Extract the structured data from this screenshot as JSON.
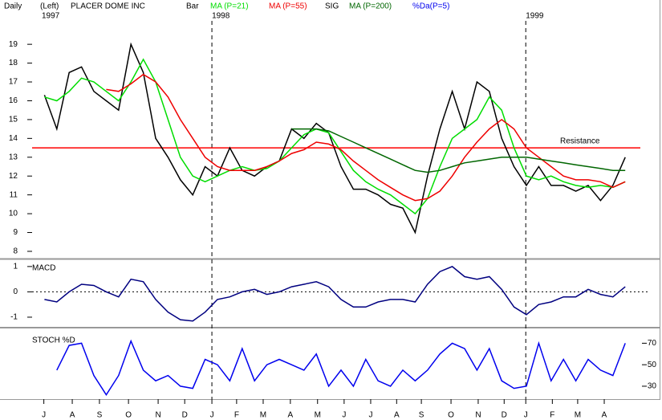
{
  "header": {
    "period": "Daily",
    "axis_side": "(Left)",
    "symbol": "PLACER DOME INC",
    "sig": "SIG"
  },
  "chart_data": [
    {
      "type": "line",
      "xlim": [
        0,
        100
      ],
      "ylim": [
        7.7,
        20.5
      ],
      "ytick_side": "left",
      "yticks": [
        8,
        9,
        10,
        11,
        12,
        13,
        14,
        15,
        16,
        17,
        18,
        19
      ],
      "year_markers": [
        {
          "value": 1.5,
          "label": "1997"
        },
        {
          "value": 29.1,
          "label": "1998"
        },
        {
          "value": 79.9,
          "label": "1999"
        }
      ],
      "resistance": {
        "label": "Resistance",
        "value": 13.5,
        "color": "#ff0000"
      },
      "x": [
        2,
        4,
        6,
        8,
        10,
        12,
        14,
        16,
        18,
        20,
        22,
        24,
        26,
        28,
        30,
        32,
        34,
        36,
        38,
        40,
        42,
        44,
        46,
        48,
        50,
        52,
        54,
        56,
        58,
        60,
        62,
        64,
        66,
        68,
        70,
        72,
        74,
        76,
        78,
        80,
        82,
        84,
        86,
        88,
        90,
        92,
        94,
        96
      ],
      "series": [
        {
          "name": "Bar",
          "color": "#000000",
          "values": [
            16.3,
            14.5,
            17.5,
            17.8,
            16.5,
            16,
            15.5,
            19,
            17.5,
            14,
            13,
            11.8,
            11,
            12.5,
            12,
            13.5,
            12.3,
            12,
            12.5,
            12.8,
            14.5,
            14,
            14.8,
            14.3,
            12.5,
            11.3,
            11.3,
            11,
            10.5,
            10.3,
            9,
            12,
            14.5,
            16.5,
            14.5,
            17,
            16.5,
            14,
            12.5,
            11.5,
            12.5,
            11.5,
            11.5,
            11.2,
            11.5,
            10.7,
            11.5,
            13
          ]
        },
        {
          "name": "MA (P=21)",
          "color": "#00dd00",
          "values": [
            16.2,
            16,
            16.5,
            17.2,
            17,
            16.5,
            16,
            17,
            18.2,
            17,
            15,
            13,
            12,
            11.7,
            12,
            12.3,
            12.5,
            12.3,
            12.4,
            12.8,
            13.5,
            14.2,
            14.5,
            14.3,
            13.3,
            12.3,
            11.7,
            11.3,
            11,
            10.5,
            10,
            10.8,
            12.5,
            14,
            14.5,
            15,
            16.2,
            15.5,
            13.5,
            12,
            11.8,
            12,
            11.7,
            11.5,
            11.4,
            11.5,
            11.4,
            11.7
          ]
        },
        {
          "name": "MA (P=55)",
          "color": "#ee0000",
          "values": [
            null,
            null,
            null,
            null,
            null,
            16.6,
            16.5,
            16.9,
            17.4,
            17,
            16.2,
            15,
            14,
            13,
            12.5,
            12.3,
            12.3,
            12.3,
            12.5,
            12.8,
            13.2,
            13.4,
            13.8,
            13.7,
            13.4,
            12.8,
            12.3,
            11.8,
            11.4,
            11,
            10.7,
            10.8,
            11.2,
            12,
            13,
            13.8,
            14.5,
            15,
            14.5,
            13.5,
            13,
            12.5,
            12,
            11.8,
            11.8,
            11.7,
            11.4,
            11.7
          ]
        },
        {
          "name": "MA (P=200)",
          "color": "#006600",
          "values": [
            null,
            null,
            null,
            null,
            null,
            null,
            null,
            null,
            null,
            null,
            null,
            null,
            null,
            null,
            null,
            null,
            null,
            null,
            null,
            null,
            14.5,
            14.5,
            14.5,
            14.4,
            14.1,
            13.8,
            13.5,
            13.2,
            12.9,
            12.6,
            12.3,
            12.2,
            12.3,
            12.5,
            12.7,
            12.8,
            12.9,
            13,
            13,
            13,
            12.9,
            12.8,
            12.7,
            12.6,
            12.5,
            12.4,
            12.3,
            12.3
          ]
        }
      ]
    },
    {
      "type": "line",
      "title": "MACD",
      "xlim": [
        0,
        100
      ],
      "ylim": [
        -1.35,
        1.25
      ],
      "ytick_side": "left",
      "yticks": [
        -1,
        0,
        1
      ],
      "zero_line": true,
      "x": [
        2,
        4,
        6,
        8,
        10,
        12,
        14,
        16,
        18,
        20,
        22,
        24,
        26,
        28,
        30,
        32,
        34,
        36,
        38,
        40,
        42,
        44,
        46,
        48,
        50,
        52,
        54,
        56,
        58,
        60,
        62,
        64,
        66,
        68,
        70,
        72,
        74,
        76,
        78,
        80,
        82,
        84,
        86,
        88,
        90,
        92,
        94,
        96
      ],
      "series": [
        {
          "color": "#000080",
          "values": [
            -0.3,
            -0.4,
            0,
            0.3,
            0.25,
            0,
            -0.2,
            0.5,
            0.4,
            -0.3,
            -0.8,
            -1.1,
            -1.15,
            -0.8,
            -0.3,
            -0.2,
            0,
            0.1,
            -0.1,
            0,
            0.2,
            0.3,
            0.4,
            0.2,
            -0.3,
            -0.6,
            -0.6,
            -0.4,
            -0.3,
            -0.3,
            -0.4,
            0.3,
            0.8,
            1,
            0.6,
            0.5,
            0.6,
            0.1,
            -0.6,
            -0.9,
            -0.5,
            -0.4,
            -0.2,
            -0.2,
            0.1,
            -0.1,
            -0.2,
            0.2
          ]
        }
      ]
    },
    {
      "type": "line",
      "title": "STOCH %D",
      "xlim": [
        0,
        100
      ],
      "ylim": [
        18,
        83
      ],
      "ytick_side": "right",
      "yticks": [
        30,
        50,
        70
      ],
      "xticks": [
        {
          "value": 1.9,
          "label": "J"
        },
        {
          "value": 6.5,
          "label": "A"
        },
        {
          "value": 10.9,
          "label": "S"
        },
        {
          "value": 15.6,
          "label": "O"
        },
        {
          "value": 20.4,
          "label": "N"
        },
        {
          "value": 24.7,
          "label": "D"
        },
        {
          "value": 29.1,
          "label": "J"
        },
        {
          "value": 33.1,
          "label": "F"
        },
        {
          "value": 37.4,
          "label": "M"
        },
        {
          "value": 41.8,
          "label": "A"
        },
        {
          "value": 46.2,
          "label": "M"
        },
        {
          "value": 50.5,
          "label": "J"
        },
        {
          "value": 54.8,
          "label": "J"
        },
        {
          "value": 59,
          "label": "A"
        },
        {
          "value": 63,
          "label": "S"
        },
        {
          "value": 67.8,
          "label": "O"
        },
        {
          "value": 72.2,
          "label": "N"
        },
        {
          "value": 76.4,
          "label": "D"
        },
        {
          "value": 79.9,
          "label": "J"
        },
        {
          "value": 84.2,
          "label": "F"
        },
        {
          "value": 88.3,
          "label": "M"
        },
        {
          "value": 92.6,
          "label": "A"
        }
      ],
      "x": [
        2,
        4,
        6,
        8,
        10,
        12,
        14,
        16,
        18,
        20,
        22,
        24,
        26,
        28,
        30,
        32,
        34,
        36,
        38,
        40,
        42,
        44,
        46,
        48,
        50,
        52,
        54,
        56,
        58,
        60,
        62,
        64,
        66,
        68,
        70,
        72,
        74,
        76,
        78,
        80,
        82,
        84,
        86,
        88,
        90,
        92,
        94,
        96
      ],
      "series": [
        {
          "name": "%Da(P=5)",
          "color": "#0000ee",
          "values": [
            null,
            45,
            68,
            70,
            40,
            22,
            40,
            72,
            45,
            35,
            40,
            30,
            28,
            55,
            50,
            35,
            65,
            35,
            50,
            55,
            50,
            45,
            60,
            30,
            45,
            30,
            55,
            35,
            30,
            45,
            35,
            45,
            60,
            70,
            65,
            45,
            65,
            35,
            28,
            30,
            70,
            35,
            55,
            35,
            55,
            45,
            40,
            70
          ]
        }
      ]
    }
  ]
}
